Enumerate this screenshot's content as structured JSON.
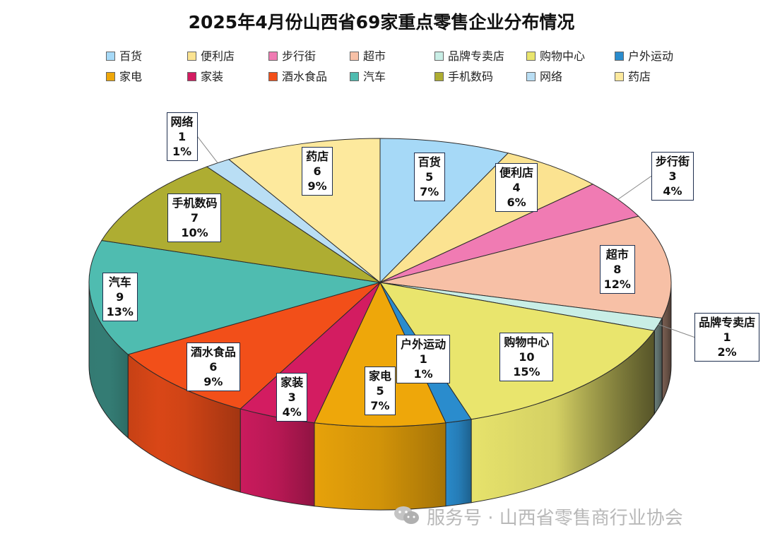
{
  "chart_data": {
    "type": "pie",
    "title": "2025年4月份山西省69家重点零售企业分布情况",
    "total": 69,
    "slices": [
      {
        "name": "百货",
        "value": 5,
        "percent": "7%",
        "color": "#a6d9f7"
      },
      {
        "name": "便利店",
        "value": 4,
        "percent": "6%",
        "color": "#fbe391"
      },
      {
        "name": "步行街",
        "value": 3,
        "percent": "4%",
        "color": "#f07bb3"
      },
      {
        "name": "超市",
        "value": 8,
        "percent": "12%",
        "color": "#f7c0a6"
      },
      {
        "name": "品牌专卖店",
        "value": 1,
        "percent": "2%",
        "color": "#c9eee6"
      },
      {
        "name": "购物中心",
        "value": 10,
        "percent": "15%",
        "color": "#e9e56d"
      },
      {
        "name": "户外运动",
        "value": 1,
        "percent": "1%",
        "color": "#2a8ccd"
      },
      {
        "name": "家电",
        "value": 5,
        "percent": "7%",
        "color": "#eea70a"
      },
      {
        "name": "家装",
        "value": 3,
        "percent": "4%",
        "color": "#d31c61"
      },
      {
        "name": "酒水食品",
        "value": 6,
        "percent": "9%",
        "color": "#f24f19"
      },
      {
        "name": "汽车",
        "value": 9,
        "percent": "13%",
        "color": "#4fbcb0"
      },
      {
        "name": "手机数码",
        "value": 7,
        "percent": "10%",
        "color": "#aead32"
      },
      {
        "name": "网络",
        "value": 1,
        "percent": "1%",
        "color": "#b9def4"
      },
      {
        "name": "药店",
        "value": 6,
        "percent": "9%",
        "color": "#fde99d"
      }
    ],
    "legend_position": "top"
  },
  "watermark": {
    "text": "服务号 · 山西省零售商行业协会",
    "icon": "wechat-icon"
  }
}
